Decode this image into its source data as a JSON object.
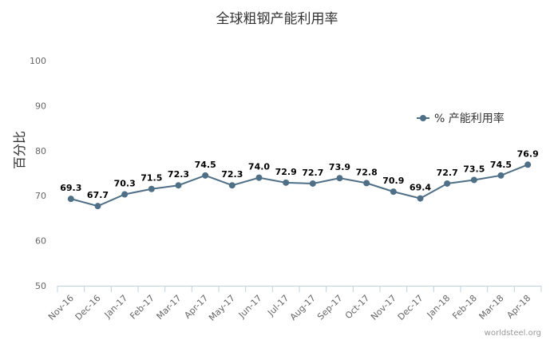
{
  "chart_data": {
    "type": "line",
    "title": "全球粗钢产能利用率",
    "ylabel": "百分比",
    "xlabel": "",
    "ylim": [
      50,
      100
    ],
    "yticks": [
      50,
      60,
      70,
      80,
      90,
      100
    ],
    "grid": false,
    "legend_position": "right",
    "categories": [
      "Nov-16",
      "Dec-16",
      "Jan-17",
      "Feb-17",
      "Mar-17",
      "Apr-17",
      "May-17",
      "Jun-17",
      "Jul-17",
      "Aug-17",
      "Sep-17",
      "Oct-17",
      "Nov-17",
      "Dec-17",
      "Jan-18",
      "Feb-18",
      "Mar-18",
      "Apr-18"
    ],
    "series": [
      {
        "name": "% 产能利用率",
        "color": "#4e6f86",
        "values": [
          69.3,
          67.7,
          70.3,
          71.5,
          72.3,
          74.5,
          72.3,
          74.0,
          72.9,
          72.7,
          73.9,
          72.8,
          70.9,
          69.4,
          72.7,
          73.5,
          74.5,
          76.9
        ]
      }
    ],
    "credit": "worldsteel.org"
  }
}
